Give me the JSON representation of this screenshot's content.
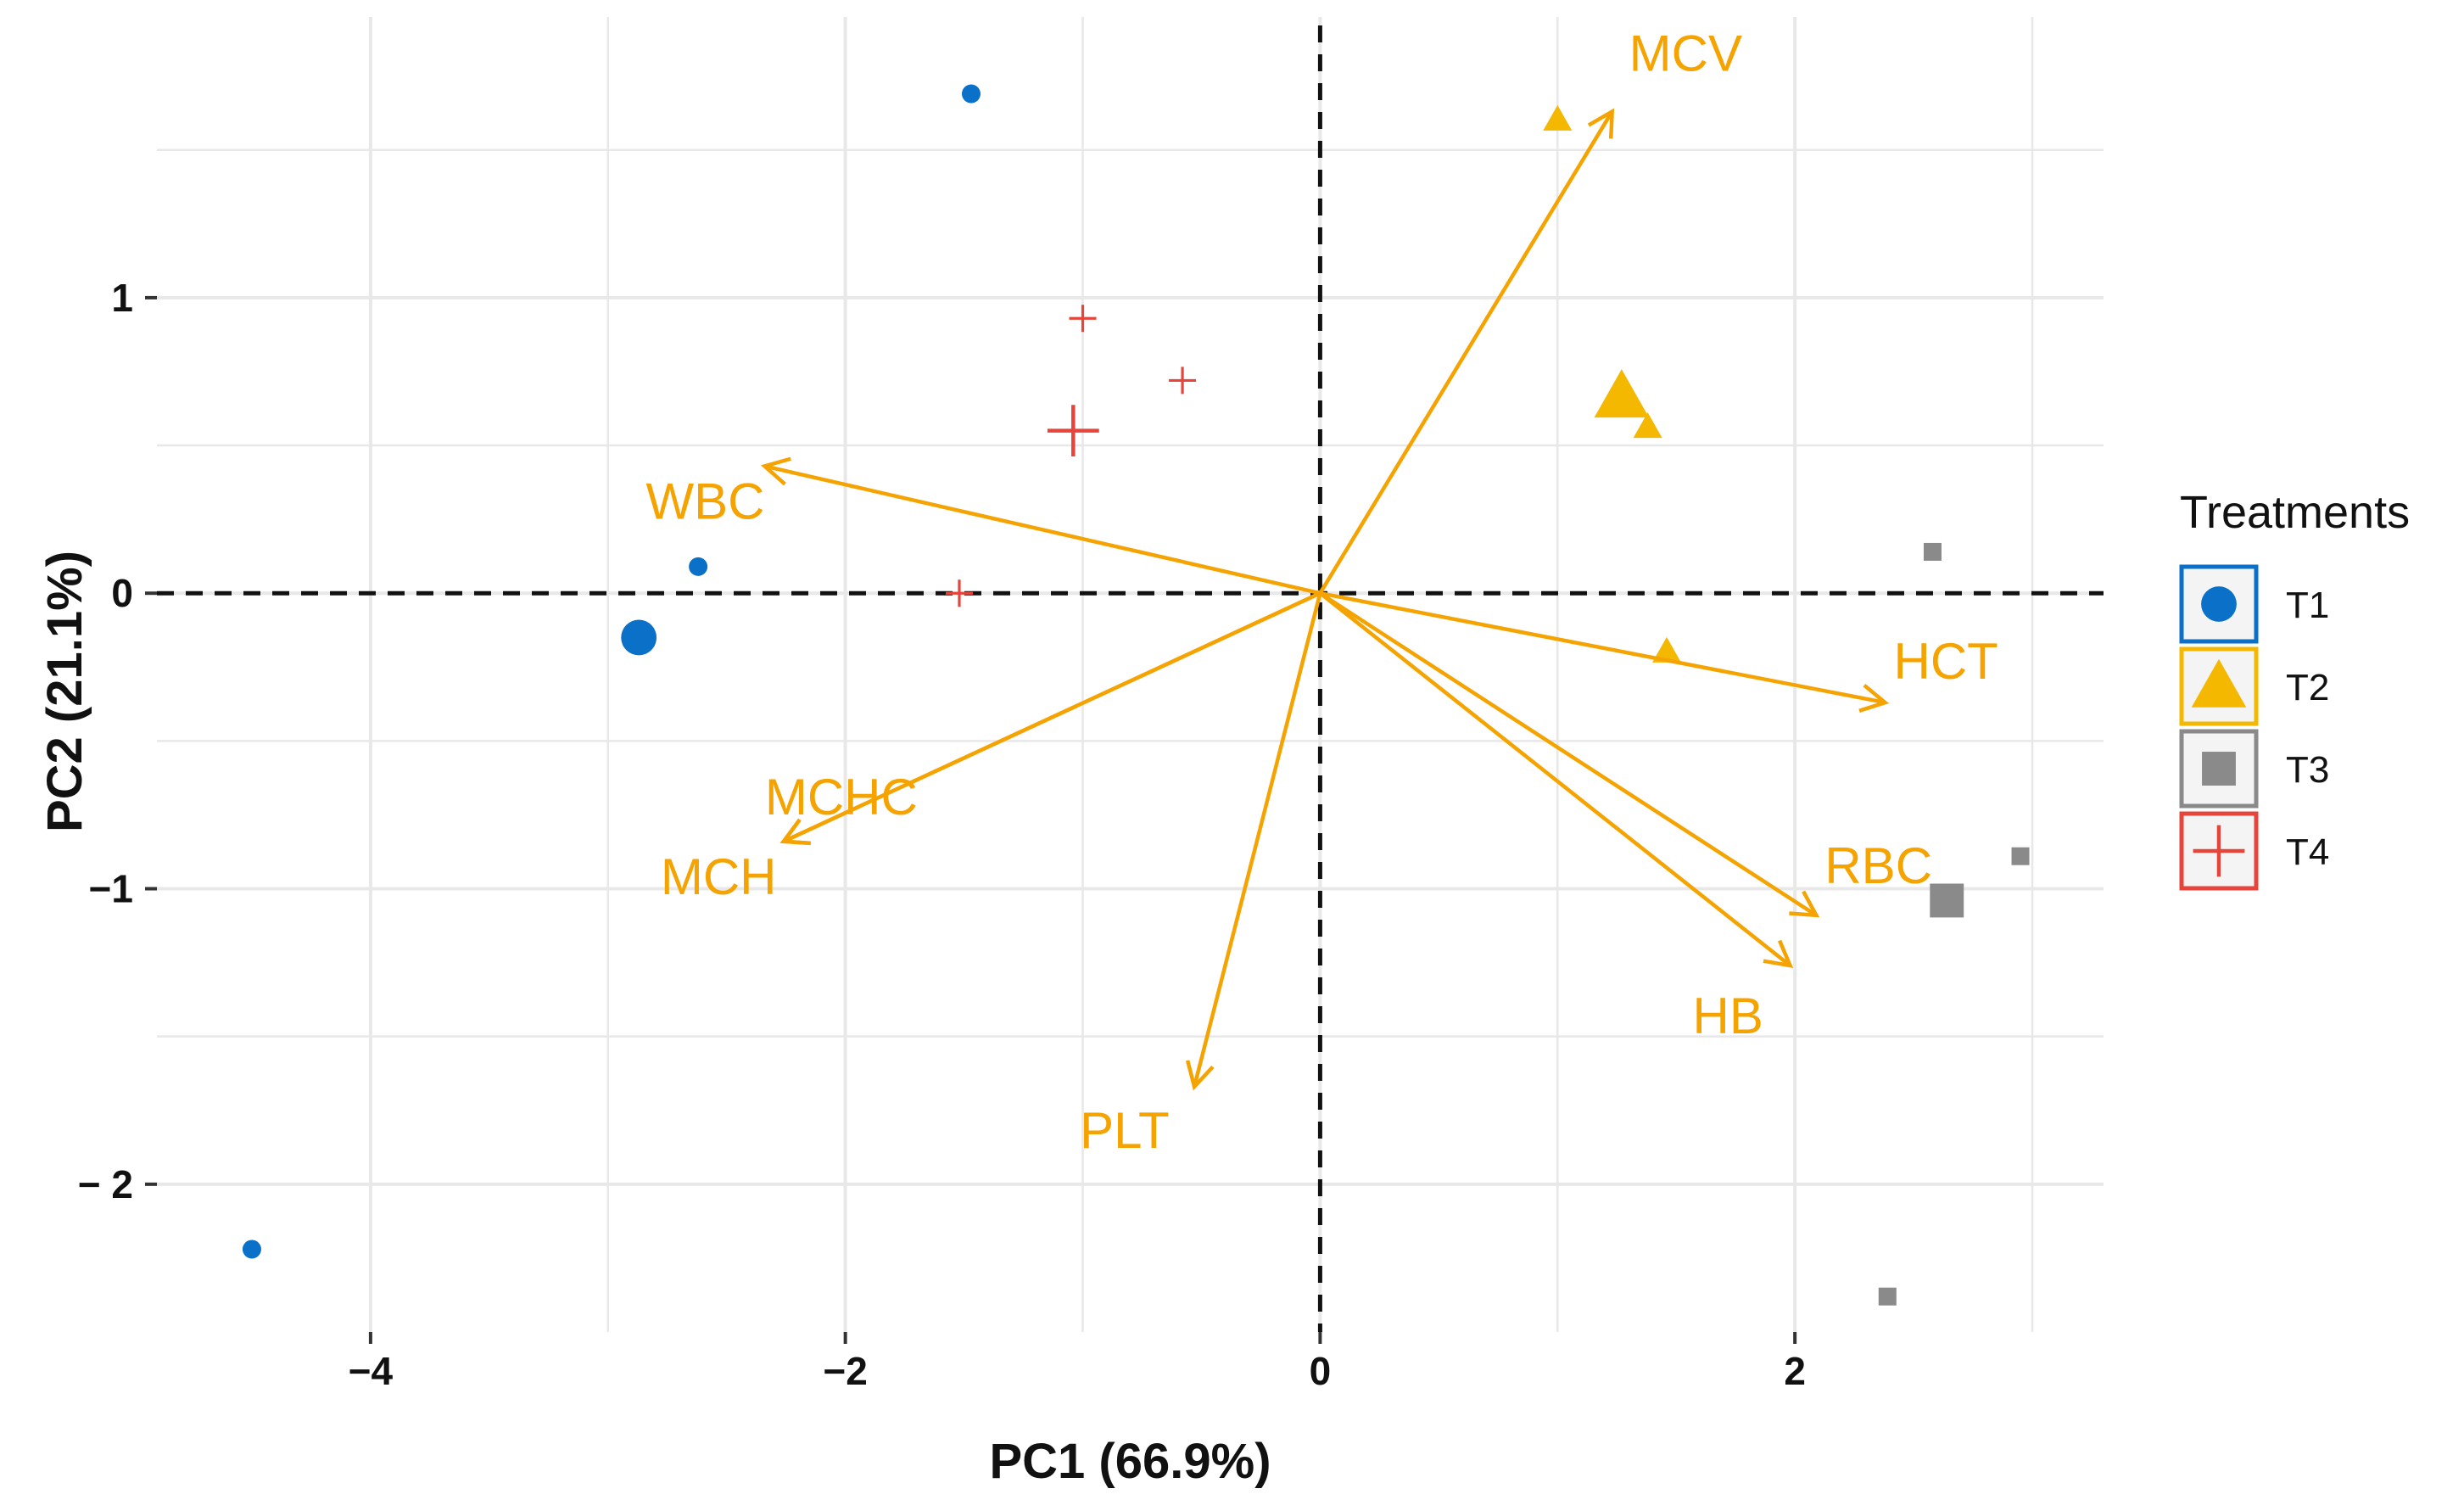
{
  "chart_data": {
    "type": "scatter",
    "subtype": "pca-biplot",
    "xlabel": "PC1 (66.9%)",
    "ylabel": "PC2 (21.1%)",
    "xlim": [
      -4.9,
      3.3
    ],
    "ylim": [
      -2.5,
      1.95
    ],
    "x_ticks": [
      -4,
      -2,
      0,
      2
    ],
    "x_tick_labels": [
      "−4",
      "−2",
      "0",
      "2"
    ],
    "y_ticks": [
      1,
      0,
      -1,
      -2
    ],
    "y_tick_labels": [
      "1",
      "0",
      "−1",
      "− 2"
    ],
    "x_gridlines": [
      -4,
      -3,
      -2,
      -1,
      0,
      1,
      2,
      3
    ],
    "y_gridlines": [
      1.5,
      1,
      0.5,
      0,
      -0.5,
      -1,
      -1.5,
      -2
    ],
    "reference_lines": {
      "x": 0,
      "y": 0,
      "style": "dashed"
    },
    "grid": true,
    "loading_color": "#F5A300",
    "loadings": [
      {
        "name": "MCV",
        "x": 1.23,
        "y": 1.63
      },
      {
        "name": "WBC",
        "x": -2.34,
        "y": 0.43
      },
      {
        "name": "HCT",
        "x": 2.38,
        "y": -0.37
      },
      {
        "name": "MCHC",
        "x": -2.26,
        "y": -0.84
      },
      {
        "name": "MCH",
        "x": -2.26,
        "y": -0.84
      },
      {
        "name": "RBC",
        "x": 2.09,
        "y": -1.09
      },
      {
        "name": "HB",
        "x": 1.98,
        "y": -1.26
      },
      {
        "name": "PLT",
        "x": -0.53,
        "y": -1.67
      }
    ],
    "series": [
      {
        "name": "T1",
        "color": "#0A70C8",
        "shape": "circle",
        "points": [
          {
            "x": -1.47,
            "y": 1.69,
            "size": "small"
          },
          {
            "x": -2.62,
            "y": 0.09,
            "size": "small"
          },
          {
            "x": -2.87,
            "y": -0.15,
            "size": "large"
          },
          {
            "x": -4.5,
            "y": -2.22,
            "size": "small"
          }
        ]
      },
      {
        "name": "T2",
        "color": "#F5B800",
        "shape": "triangle",
        "points": [
          {
            "x": 1.0,
            "y": 1.6,
            "size": "small"
          },
          {
            "x": 1.27,
            "y": 0.66,
            "size": "large"
          },
          {
            "x": 1.38,
            "y": 0.56,
            "size": "small"
          },
          {
            "x": 1.46,
            "y": -0.2,
            "size": "small"
          }
        ]
      },
      {
        "name": "T3",
        "color": "#8A8A8A",
        "shape": "square",
        "points": [
          {
            "x": 2.58,
            "y": 0.14,
            "size": "small"
          },
          {
            "x": 2.95,
            "y": -0.89,
            "size": "small"
          },
          {
            "x": 2.64,
            "y": -1.04,
            "size": "large"
          },
          {
            "x": 2.39,
            "y": -2.38,
            "size": "small"
          }
        ]
      },
      {
        "name": "T4",
        "color": "#E5453B",
        "shape": "plus",
        "points": [
          {
            "x": -1.0,
            "y": 0.93,
            "size": "small"
          },
          {
            "x": -0.58,
            "y": 0.72,
            "size": "small"
          },
          {
            "x": -1.04,
            "y": 0.55,
            "size": "large"
          },
          {
            "x": -1.52,
            "y": 0.0,
            "size": "small"
          }
        ]
      }
    ],
    "legend": {
      "title": "Treatments",
      "position": "right",
      "entries": [
        "T1",
        "T2",
        "T3",
        "T4"
      ]
    }
  }
}
